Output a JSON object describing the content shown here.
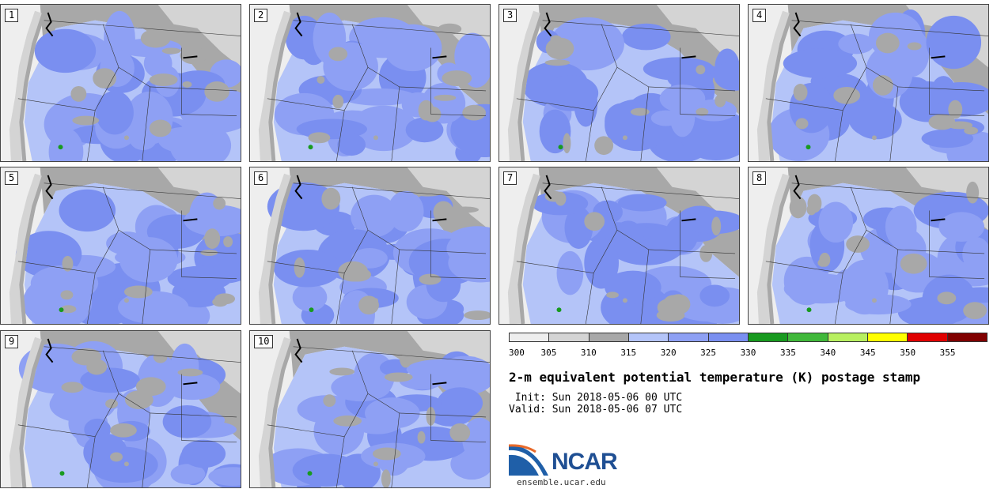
{
  "panels": [
    {
      "label": "1"
    },
    {
      "label": "2"
    },
    {
      "label": "3"
    },
    {
      "label": "4"
    },
    {
      "label": "5"
    },
    {
      "label": "6"
    },
    {
      "label": "7"
    },
    {
      "label": "8"
    },
    {
      "label": "9"
    },
    {
      "label": "10"
    }
  ],
  "colorbar": {
    "colors": [
      "#eeeeee",
      "#d4d4d4",
      "#a8a8a8",
      "#b4c4f8",
      "#8ea0f4",
      "#7a8ff0",
      "#189a1f",
      "#40b83a",
      "#b8f060",
      "#ffff00",
      "#e00000",
      "#800000"
    ],
    "tick_labels": [
      "300",
      "305",
      "310",
      "315",
      "320",
      "325",
      "330",
      "335",
      "340",
      "345",
      "350",
      "355"
    ]
  },
  "title": "2-m equivalent potential temperature (K) postage stamp",
  "init_line": " Init: Sun 2018-05-06 00 UTC",
  "valid_line": "Valid: Sun 2018-05-06 07 UTC",
  "logo_text": "NCAR",
  "site_url": "ensemble.ucar.edu"
}
